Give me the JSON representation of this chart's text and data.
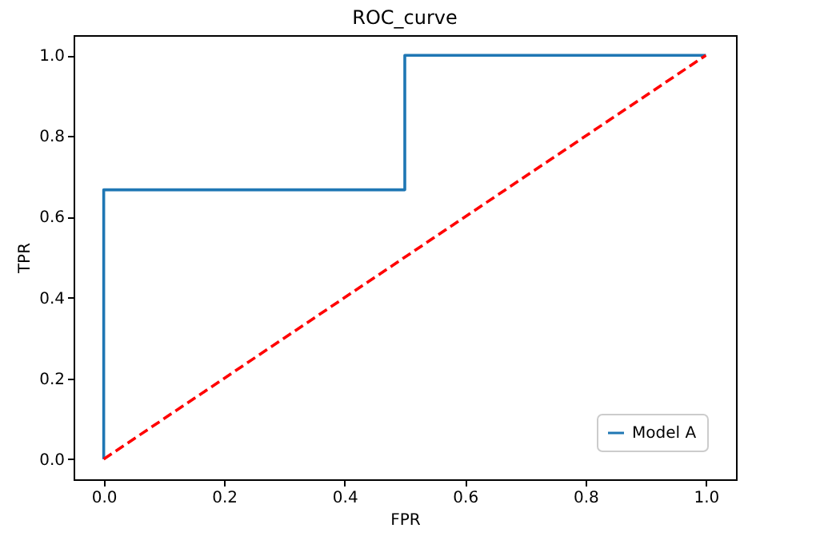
{
  "chart_data": {
    "type": "line",
    "title": "ROC_curve",
    "xlabel": "FPR",
    "ylabel": "TPR",
    "series": [
      {
        "name": "Model A",
        "color": "#1f77b4",
        "line_style": "solid",
        "x": [
          0,
          0,
          0.5,
          0.5,
          1
        ],
        "values": [
          0,
          0.667,
          0.667,
          1,
          1
        ]
      },
      {
        "color": "#ff0000",
        "line_style": "dashed",
        "x": [
          0,
          1
        ],
        "values": [
          0,
          1
        ]
      }
    ],
    "xlim": [
      -0.05,
      1.05
    ],
    "ylim": [
      -0.05,
      1.05
    ],
    "xticks": [
      {
        "value": 0,
        "label": "0.0"
      },
      {
        "value": 0.2,
        "label": "0.2"
      },
      {
        "value": 0.4,
        "label": "0.4"
      },
      {
        "value": 0.6,
        "label": "0.6"
      },
      {
        "value": 0.8,
        "label": "0.8"
      },
      {
        "value": 1,
        "label": "1.0"
      }
    ],
    "yticks": [
      {
        "value": 0,
        "label": "0.0"
      },
      {
        "value": 0.2,
        "label": "0.2"
      },
      {
        "value": 0.4,
        "label": "0.4"
      },
      {
        "value": 0.6,
        "label": "0.6"
      },
      {
        "value": 0.8,
        "label": "0.8"
      },
      {
        "value": 1,
        "label": "1.0"
      }
    ],
    "legend": "bottom right",
    "grid": false,
    "marker": "none"
  }
}
